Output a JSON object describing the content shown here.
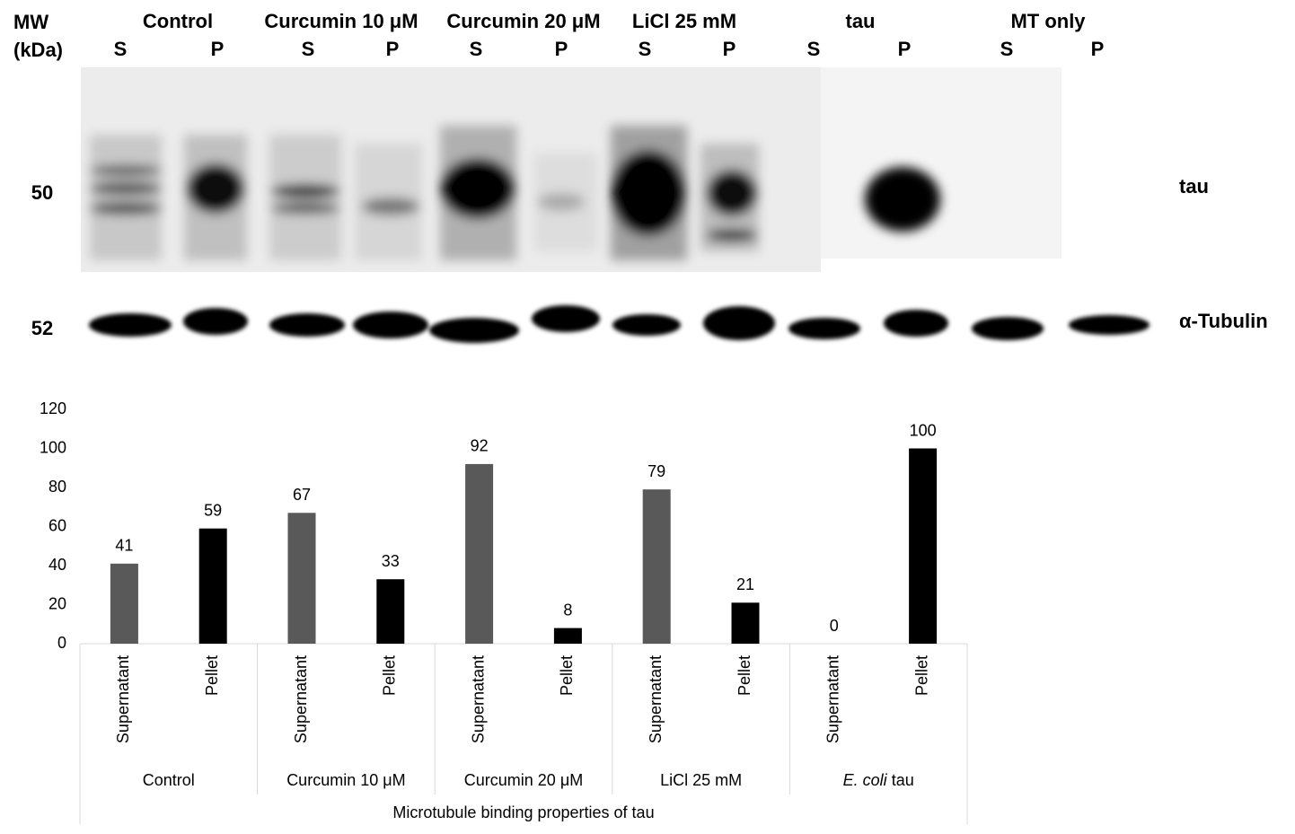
{
  "blot": {
    "mw_label": "MW",
    "mw_unit": "(kDa)",
    "groups": [
      "Control",
      "Curcumin 10 μM",
      "Curcumin 20 μM",
      "LiCl 25 mM",
      "tau",
      "MT only"
    ],
    "lanes": [
      "S",
      "P",
      "S",
      "P",
      "S",
      "P",
      "S",
      "P",
      "S",
      "P",
      "S",
      "P"
    ],
    "markers": [
      "50",
      "52"
    ],
    "rows": [
      "tau",
      "α-Tubulin"
    ]
  },
  "chart_data": {
    "type": "bar",
    "x_label": "Microtubule binding properties of tau",
    "categories": [
      "Control",
      "Curcumin 10 μM",
      "Curcumin 20 μM",
      "LiCl 25 mM",
      {
        "italic": "E. coli",
        "text": "tau"
      }
    ],
    "series": [
      {
        "name": "Supernatant",
        "color": "#595959",
        "values": [
          41,
          67,
          92,
          79,
          0
        ]
      },
      {
        "name": "Pellet",
        "color": "#000000",
        "values": [
          59,
          33,
          8,
          21,
          100
        ]
      }
    ],
    "ylim": [
      0,
      120
    ],
    "yticks": [
      0,
      20,
      40,
      60,
      80,
      100,
      120
    ],
    "grid": false
  }
}
